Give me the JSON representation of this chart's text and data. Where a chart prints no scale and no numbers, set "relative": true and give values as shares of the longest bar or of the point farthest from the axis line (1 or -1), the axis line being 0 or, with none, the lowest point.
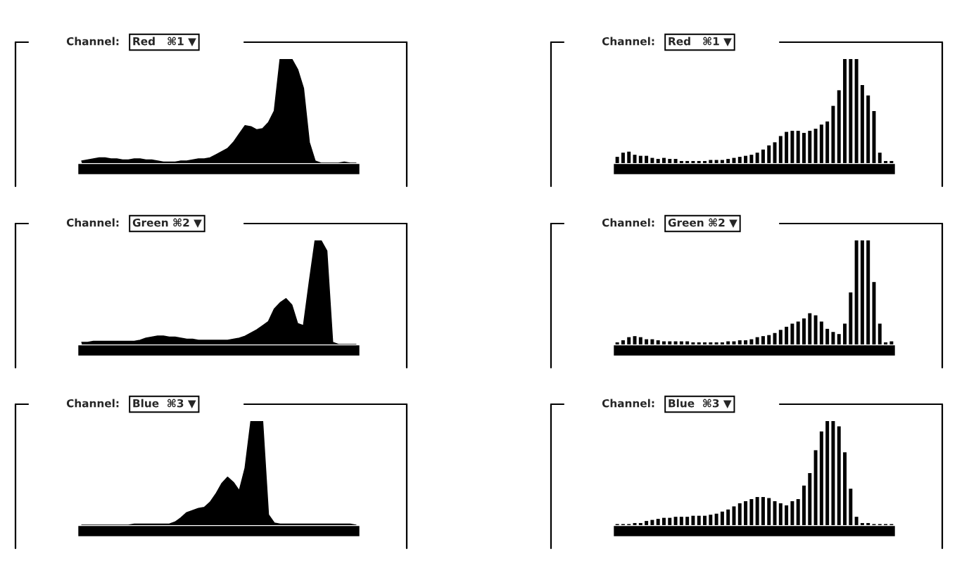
{
  "chart_data": [
    {
      "type": "area",
      "title": "Channel:",
      "subtitle": "Red   ⌘1 ▼",
      "relative": true,
      "categories": [
        null,
        null,
        null,
        null,
        null,
        null,
        null,
        null,
        null,
        null,
        null,
        null,
        null,
        null,
        null,
        null,
        null,
        null,
        null,
        null,
        null,
        null,
        null,
        null,
        null,
        null,
        null,
        null,
        null,
        null,
        null,
        null,
        null,
        null,
        null,
        null,
        null,
        null,
        null,
        null,
        null,
        null,
        null,
        null,
        null,
        null,
        null,
        null
      ],
      "series": [
        {
          "color": "#000000",
          "values": [
            0.02,
            0.03,
            0.04,
            0.05,
            0.05,
            0.04,
            0.04,
            0.03,
            0.03,
            0.04,
            0.04,
            0.03,
            0.03,
            0.02,
            0.01,
            0.01,
            0.01,
            0.02,
            0.02,
            0.03,
            0.04,
            0.04,
            0.05,
            0.08,
            0.11,
            0.14,
            0.2,
            0.28,
            0.36,
            0.35,
            0.32,
            0.33,
            0.39,
            0.5,
            1,
            1,
            1,
            0.9,
            0.72,
            0.2,
            0.02,
            0,
            0,
            0,
            0,
            0.01,
            0,
            0
          ]
        }
      ]
    },
    {
      "type": "bar",
      "title": "Channel:",
      "subtitle": "Red   ⌘1 ▼",
      "relative": true,
      "categories": [
        null,
        null,
        null,
        null,
        null,
        null,
        null,
        null,
        null,
        null,
        null,
        null,
        null,
        null,
        null,
        null,
        null,
        null,
        null,
        null,
        null,
        null,
        null,
        null,
        null,
        null,
        null,
        null,
        null,
        null,
        null,
        null,
        null,
        null,
        null,
        null,
        null,
        null,
        null,
        null,
        null,
        null,
        null,
        null,
        null,
        null,
        null,
        null
      ],
      "series": [
        {
          "color": "#000000",
          "values": [
            0.06,
            0.1,
            0.11,
            0.08,
            0.07,
            0.07,
            0.05,
            0.04,
            0.05,
            0.04,
            0.04,
            0.02,
            0.02,
            0.02,
            0.02,
            0.02,
            0.03,
            0.03,
            0.03,
            0.04,
            0.05,
            0.06,
            0.07,
            0.08,
            0.1,
            0.13,
            0.17,
            0.2,
            0.26,
            0.3,
            0.31,
            0.31,
            0.29,
            0.31,
            0.33,
            0.37,
            0.4,
            0.55,
            0.7,
            1,
            1,
            1,
            0.75,
            0.65,
            0.5,
            0.1,
            0.02,
            0.02
          ]
        }
      ]
    },
    {
      "type": "area",
      "title": "Channel:",
      "subtitle": "Green ⌘2 ▼",
      "relative": true,
      "categories": [
        null,
        null,
        null,
        null,
        null,
        null,
        null,
        null,
        null,
        null,
        null,
        null,
        null,
        null,
        null,
        null,
        null,
        null,
        null,
        null,
        null,
        null,
        null,
        null,
        null,
        null,
        null,
        null,
        null,
        null,
        null,
        null,
        null,
        null,
        null,
        null,
        null,
        null,
        null,
        null,
        null,
        null,
        null,
        null,
        null,
        null,
        null,
        null
      ],
      "series": [
        {
          "color": "#000000",
          "values": [
            0.02,
            0.02,
            0.03,
            0.03,
            0.03,
            0.03,
            0.03,
            0.03,
            0.03,
            0.03,
            0.04,
            0.06,
            0.07,
            0.08,
            0.08,
            0.07,
            0.07,
            0.06,
            0.05,
            0.05,
            0.04,
            0.04,
            0.04,
            0.04,
            0.04,
            0.04,
            0.05,
            0.06,
            0.08,
            0.11,
            0.14,
            0.18,
            0.22,
            0.34,
            0.4,
            0.44,
            0.38,
            0.2,
            0.18,
            0.6,
            1,
            1,
            0.9,
            0.02,
            0,
            0,
            0,
            0
          ]
        }
      ]
    },
    {
      "type": "bar",
      "title": "Channel:",
      "subtitle": "Green ⌘2 ▼",
      "relative": true,
      "categories": [
        null,
        null,
        null,
        null,
        null,
        null,
        null,
        null,
        null,
        null,
        null,
        null,
        null,
        null,
        null,
        null,
        null,
        null,
        null,
        null,
        null,
        null,
        null,
        null,
        null,
        null,
        null,
        null,
        null,
        null,
        null,
        null,
        null,
        null,
        null,
        null,
        null,
        null,
        null,
        null,
        null,
        null,
        null,
        null,
        null,
        null,
        null,
        null
      ],
      "series": [
        {
          "color": "#000000",
          "values": [
            0.02,
            0.04,
            0.07,
            0.08,
            0.07,
            0.05,
            0.05,
            0.04,
            0.03,
            0.03,
            0.03,
            0.03,
            0.03,
            0.02,
            0.02,
            0.02,
            0.02,
            0.02,
            0.02,
            0.03,
            0.03,
            0.04,
            0.04,
            0.05,
            0.07,
            0.08,
            0.09,
            0.11,
            0.14,
            0.17,
            0.2,
            0.22,
            0.25,
            0.3,
            0.28,
            0.22,
            0.15,
            0.12,
            0.1,
            0.2,
            0.5,
            1,
            1,
            1,
            0.6,
            0.2,
            0.02,
            0.03
          ]
        }
      ]
    },
    {
      "type": "area",
      "title": "Channel:",
      "subtitle": "Blue  ⌘3 ▼",
      "relative": true,
      "categories": [
        null,
        null,
        null,
        null,
        null,
        null,
        null,
        null,
        null,
        null,
        null,
        null,
        null,
        null,
        null,
        null,
        null,
        null,
        null,
        null,
        null,
        null,
        null,
        null,
        null,
        null,
        null,
        null,
        null,
        null,
        null,
        null,
        null,
        null,
        null,
        null,
        null,
        null,
        null,
        null,
        null,
        null,
        null,
        null,
        null,
        null,
        null,
        null
      ],
      "series": [
        {
          "color": "#000000",
          "values": [
            0,
            0,
            0,
            0,
            0,
            0,
            0,
            0,
            0,
            0.01,
            0.01,
            0.01,
            0.01,
            0.01,
            0.01,
            0.01,
            0.03,
            0.07,
            0.12,
            0.14,
            0.16,
            0.17,
            0.22,
            0.3,
            0.4,
            0.46,
            0.41,
            0.33,
            0.55,
            1,
            1,
            1,
            0.1,
            0.02,
            0.01,
            0.01,
            0.01,
            0.01,
            0.01,
            0.01,
            0.01,
            0.01,
            0.01,
            0.01,
            0.01,
            0.01,
            0.01,
            0
          ]
        }
      ]
    },
    {
      "type": "bar",
      "title": "Channel:",
      "subtitle": "Blue  ⌘3 ▼",
      "relative": true,
      "categories": [
        null,
        null,
        null,
        null,
        null,
        null,
        null,
        null,
        null,
        null,
        null,
        null,
        null,
        null,
        null,
        null,
        null,
        null,
        null,
        null,
        null,
        null,
        null,
        null,
        null,
        null,
        null,
        null,
        null,
        null,
        null,
        null,
        null,
        null,
        null,
        null,
        null,
        null,
        null,
        null,
        null,
        null,
        null,
        null,
        null,
        null,
        null,
        null
      ],
      "series": [
        {
          "color": "#000000",
          "values": [
            0.01,
            0.01,
            0.01,
            0.02,
            0.02,
            0.04,
            0.05,
            0.06,
            0.07,
            0.07,
            0.08,
            0.08,
            0.08,
            0.09,
            0.09,
            0.09,
            0.1,
            0.11,
            0.13,
            0.15,
            0.18,
            0.21,
            0.23,
            0.25,
            0.27,
            0.27,
            0.26,
            0.23,
            0.21,
            0.19,
            0.23,
            0.25,
            0.38,
            0.5,
            0.72,
            0.9,
            1,
            1,
            0.95,
            0.7,
            0.35,
            0.08,
            0.02,
            0.02,
            0.01,
            0.01,
            0.01,
            0.01
          ]
        }
      ]
    }
  ]
}
